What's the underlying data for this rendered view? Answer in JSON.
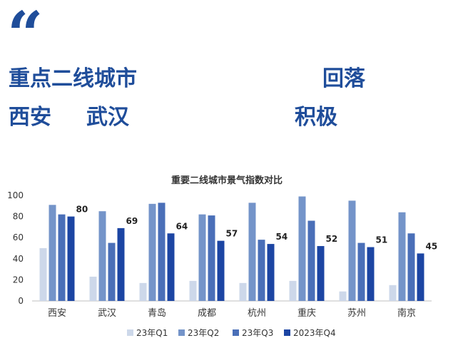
{
  "page": {
    "quote_mark": "“",
    "headline_line1a": "重点二线城市",
    "headline_line1b": "回落",
    "headline_line2a": "西安",
    "headline_line2b": "武汉",
    "headline_line2c": "积极"
  },
  "chart_data": {
    "type": "bar",
    "title": "重要二线城市景气指数对比",
    "categories": [
      "西安",
      "武汉",
      "青岛",
      "成都",
      "杭州",
      "重庆",
      "苏州",
      "南京"
    ],
    "series": [
      {
        "name": "23年Q1",
        "color": "#cdd8ea",
        "values": [
          50,
          23,
          17,
          19,
          17,
          19,
          9,
          15
        ]
      },
      {
        "name": "23年Q2",
        "color": "#7494c9",
        "values": [
          91,
          85,
          92,
          82,
          93,
          99,
          95,
          84
        ]
      },
      {
        "name": "23年Q3",
        "color": "#4a6fb8",
        "values": [
          82,
          55,
          93,
          81,
          58,
          76,
          55,
          64
        ]
      },
      {
        "name": "2023年Q4",
        "color": "#1c45a3",
        "values": [
          80,
          69,
          64,
          57,
          54,
          52,
          51,
          45
        ]
      }
    ],
    "data_labels": {
      "series": "2023年Q4",
      "values": [
        80,
        69,
        64,
        57,
        54,
        52,
        51,
        45
      ]
    },
    "ylim": [
      0,
      100
    ],
    "yticks": [
      0,
      20,
      40,
      60,
      80,
      100
    ],
    "legend_position": "bottom",
    "grid": false
  }
}
